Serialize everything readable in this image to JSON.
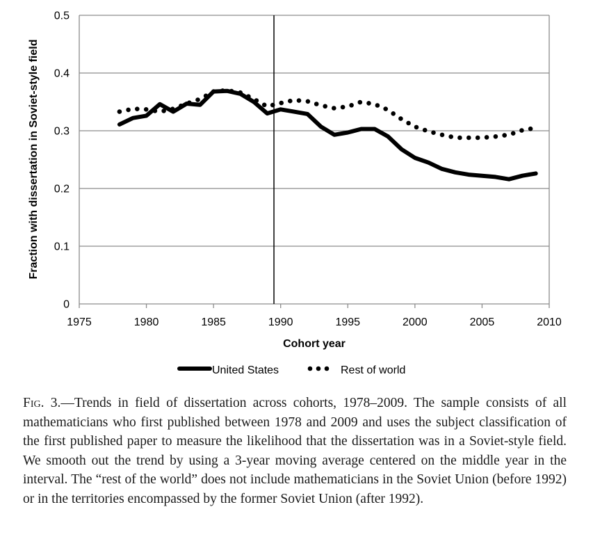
{
  "chart_data": {
    "type": "line",
    "xlabel": "Cohort year",
    "ylabel": "Fraction with dissertation in Soviet-style field",
    "xlim": [
      1975,
      2010
    ],
    "ylim": [
      0,
      0.5
    ],
    "x_ticks": [
      "1975",
      "1980",
      "1985",
      "1990",
      "1995",
      "2000",
      "2005",
      "2010"
    ],
    "y_ticks": [
      "0",
      "0.1",
      "0.2",
      "0.3",
      "0.4",
      "0.5"
    ],
    "grid": "horizontal",
    "vertical_reference_line": 1989.5,
    "legend_position": "bottom",
    "x": [
      1978,
      1979,
      1980,
      1981,
      1982,
      1983,
      1984,
      1985,
      1986,
      1987,
      1988,
      1989,
      1990,
      1991,
      1992,
      1993,
      1994,
      1995,
      1996,
      1997,
      1998,
      1999,
      2000,
      2001,
      2002,
      2003,
      2004,
      2005,
      2006,
      2007,
      2008,
      2009
    ],
    "series": [
      {
        "name": "United States",
        "style": "solid",
        "color": "#000000",
        "values": [
          0.311,
          0.322,
          0.326,
          0.346,
          0.333,
          0.347,
          0.345,
          0.368,
          0.369,
          0.364,
          0.35,
          0.33,
          0.337,
          0.333,
          0.329,
          0.307,
          0.293,
          0.297,
          0.303,
          0.303,
          0.29,
          0.268,
          0.253,
          0.245,
          0.234,
          0.228,
          0.224,
          0.222,
          0.22,
          0.216,
          0.222,
          0.226
        ]
      },
      {
        "name": "Rest of world",
        "style": "dotted",
        "color": "#000000",
        "values": [
          0.333,
          0.338,
          0.337,
          0.333,
          0.338,
          0.347,
          0.355,
          0.368,
          0.37,
          0.366,
          0.355,
          0.342,
          0.348,
          0.353,
          0.351,
          0.344,
          0.339,
          0.342,
          0.35,
          0.346,
          0.336,
          0.32,
          0.307,
          0.299,
          0.293,
          0.288,
          0.288,
          0.288,
          0.29,
          0.293,
          0.301,
          0.305
        ]
      }
    ]
  },
  "caption": {
    "fig_label": "Fig. 3.",
    "text": "—Trends in field of dissertation across cohorts, 1978–2009. The sample consists of all mathematicians who first published between 1978 and 2009 and uses the subject classification of the first published paper to measure the likelihood that the dissertation was in a Soviet-style field. We smooth out the trend by using a 3-year moving average centered on the middle year in the interval. The “rest of the world” does not include mathematicians in the Soviet Union (before 1992) or in the territories encompassed by the former Soviet Union (after 1992)."
  }
}
